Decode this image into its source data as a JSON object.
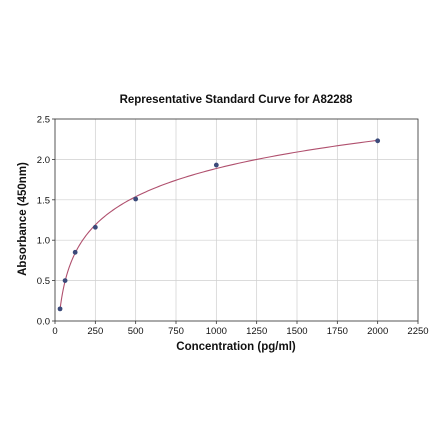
{
  "chart_data": {
    "type": "scatter",
    "title": "Representative Standard Curve for A82288",
    "xlabel": "Concentration (pg/ml)",
    "ylabel": "Absorbance (450nm)",
    "xlim": [
      0,
      2250
    ],
    "ylim": [
      0,
      2.5
    ],
    "x_ticks": [
      "0",
      "250",
      "500",
      "750",
      "1000",
      "1250",
      "1500",
      "1750",
      "2000",
      "2250"
    ],
    "y_ticks": [
      "0.0",
      "0.5",
      "1.0",
      "1.5",
      "2.0",
      "2.5"
    ],
    "grid": true,
    "legend": "none",
    "series": [
      {
        "x": [
          31.25,
          62.5,
          125,
          250,
          500,
          1000,
          2000
        ],
        "y": [
          0.15,
          0.5,
          0.85,
          1.16,
          1.51,
          1.93,
          2.23
        ],
        "marker_color": "#3b4a7a",
        "fit_line_color": "#b0506e"
      }
    ]
  }
}
